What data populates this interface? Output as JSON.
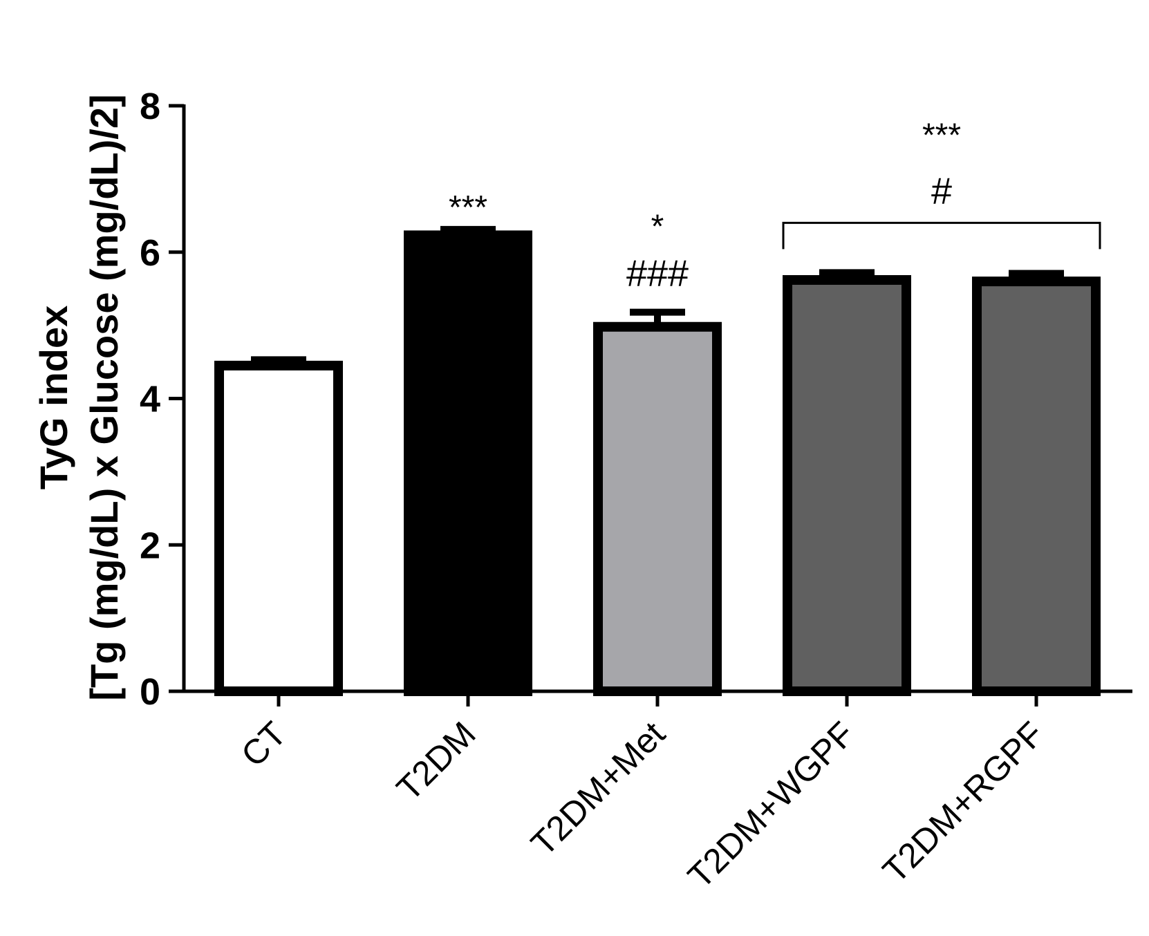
{
  "chart_data": {
    "type": "bar",
    "ylabel_line1": "TyG index",
    "ylabel_line2": "[Tg (mg/dL) x Glucose (mg/dL)/2]",
    "ylim": [
      0,
      8
    ],
    "yticks": [
      "0",
      "2",
      "4",
      "6",
      "8"
    ],
    "categories": [
      "CT",
      "T2DM",
      "T2DM+Met",
      "T2DM+WGPF",
      "T2DM+RGPF"
    ],
    "values": [
      4.45,
      6.23,
      4.98,
      5.62,
      5.6
    ],
    "errors": [
      0.08,
      0.08,
      0.2,
      0.1,
      0.11
    ],
    "bar_colors": [
      "#ffffff",
      "#000000",
      "#a6a6aa",
      "#606060",
      "#606060"
    ],
    "annotations": [
      {
        "category": "T2DM",
        "lines": [
          "***"
        ]
      },
      {
        "category": "T2DM+Met",
        "lines": [
          "*",
          "###"
        ]
      }
    ],
    "group_annotation": {
      "categories": [
        "T2DM+WGPF",
        "T2DM+RGPF"
      ],
      "lines": [
        "***",
        "#"
      ]
    },
    "grid": false,
    "legend": "none"
  }
}
